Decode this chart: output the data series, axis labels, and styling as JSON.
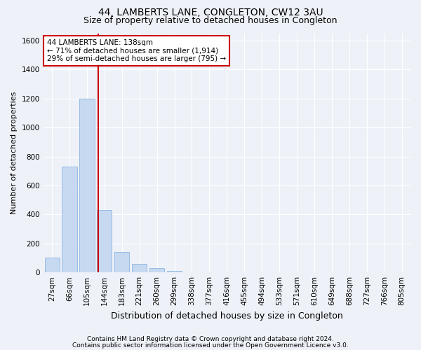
{
  "title1": "44, LAMBERTS LANE, CONGLETON, CW12 3AU",
  "title2": "Size of property relative to detached houses in Congleton",
  "xlabel": "Distribution of detached houses by size in Congleton",
  "ylabel": "Number of detached properties",
  "footnote1": "Contains HM Land Registry data © Crown copyright and database right 2024.",
  "footnote2": "Contains public sector information licensed under the Open Government Licence v3.0.",
  "bar_labels": [
    "27sqm",
    "66sqm",
    "105sqm",
    "144sqm",
    "183sqm",
    "221sqm",
    "260sqm",
    "299sqm",
    "338sqm",
    "377sqm",
    "416sqm",
    "455sqm",
    "494sqm",
    "533sqm",
    "571sqm",
    "610sqm",
    "649sqm",
    "688sqm",
    "727sqm",
    "766sqm",
    "805sqm"
  ],
  "bar_values": [
    100,
    730,
    1200,
    430,
    140,
    60,
    30,
    10,
    0,
    0,
    0,
    0,
    0,
    0,
    0,
    0,
    0,
    0,
    0,
    0,
    0
  ],
  "bar_color": "#c6d9f0",
  "bar_edgecolor": "#8db4e2",
  "vline_index": 3,
  "vline_color": "#cc0000",
  "annotation_line1": "44 LAMBERTS LANE: 138sqm",
  "annotation_line2": "← 71% of detached houses are smaller (1,914)",
  "annotation_line3": "29% of semi-detached houses are larger (795) →",
  "annotation_box_edgecolor": "#cc0000",
  "ylim": [
    0,
    1650
  ],
  "yticks": [
    0,
    200,
    400,
    600,
    800,
    1000,
    1200,
    1400,
    1600
  ],
  "bg_color": "#eef2f8",
  "plot_bg_color": "#eef2f8",
  "grid_color": "#ffffff",
  "title1_fontsize": 10,
  "title2_fontsize": 9,
  "ylabel_fontsize": 8,
  "xlabel_fontsize": 9,
  "tick_fontsize": 7.5,
  "annotation_fontsize": 7.5,
  "footnote_fontsize": 6.5
}
